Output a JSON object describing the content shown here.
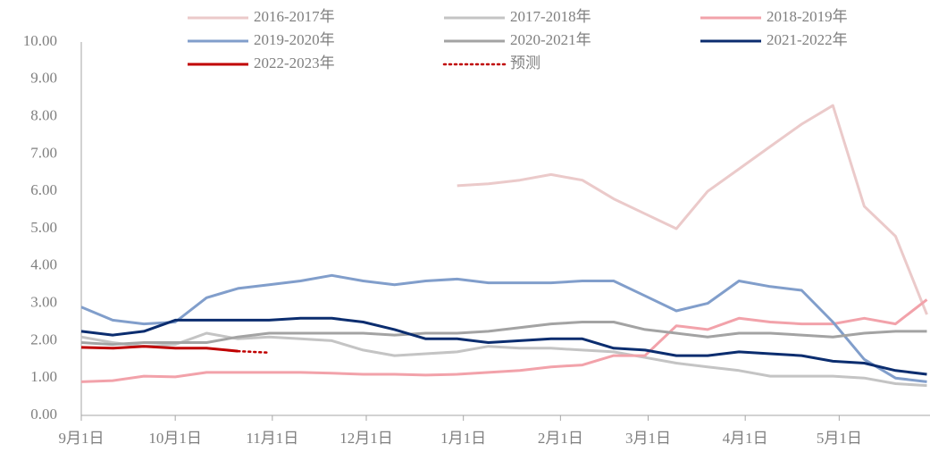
{
  "chart_data": {
    "type": "line",
    "x": [
      0,
      10,
      20,
      30,
      40,
      50,
      60,
      70,
      80,
      90,
      100,
      110,
      120,
      130,
      140,
      150,
      160,
      170,
      180,
      190,
      200,
      210,
      220,
      230,
      240,
      250,
      260,
      270
    ],
    "xlim": [
      0,
      271
    ],
    "xticks": [
      {
        "value": 0,
        "label": "9月1日"
      },
      {
        "value": 30,
        "label": "10月1日"
      },
      {
        "value": 61,
        "label": "11月1日"
      },
      {
        "value": 91,
        "label": "12月1日"
      },
      {
        "value": 122,
        "label": "1月1日"
      },
      {
        "value": 153,
        "label": "2月1日"
      },
      {
        "value": 181,
        "label": "3月1日"
      },
      {
        "value": 212,
        "label": "4月1日"
      },
      {
        "value": 242,
        "label": "5月1日"
      }
    ],
    "ylim": [
      0,
      10
    ],
    "yticks": [
      {
        "value": 0,
        "label": "0.00"
      },
      {
        "value": 1,
        "label": "1.00"
      },
      {
        "value": 2,
        "label": "2.00"
      },
      {
        "value": 3,
        "label": "3.00"
      },
      {
        "value": 4,
        "label": "4.00"
      },
      {
        "value": 5,
        "label": "5.00"
      },
      {
        "value": 6,
        "label": "6.00"
      },
      {
        "value": 7,
        "label": "7.00"
      },
      {
        "value": 8,
        "label": "8.00"
      },
      {
        "value": 9,
        "label": "9.00"
      },
      {
        "value": 10,
        "label": "10.00"
      }
    ],
    "grid": false,
    "legend": "top",
    "series": [
      {
        "name": "2016-2017年",
        "color": "#ebcaca",
        "style": "solid",
        "values": [
          null,
          null,
          null,
          null,
          null,
          null,
          null,
          null,
          null,
          null,
          null,
          null,
          6.15,
          6.2,
          6.3,
          6.45,
          6.3,
          5.8,
          5.4,
          5.0,
          6.0,
          6.6,
          7.2,
          7.8,
          8.3,
          5.6,
          4.8,
          2.7
        ]
      },
      {
        "name": "2017-2018年",
        "color": "#c4c4c4",
        "style": "solid",
        "values": [
          2.1,
          1.95,
          1.85,
          1.9,
          2.2,
          2.05,
          2.1,
          2.05,
          2.0,
          1.75,
          1.6,
          1.65,
          1.7,
          1.85,
          1.8,
          1.8,
          1.75,
          1.7,
          1.55,
          1.4,
          1.3,
          1.2,
          1.05,
          1.05,
          1.05,
          1.0,
          0.85,
          0.8
        ]
      },
      {
        "name": "2018-2019年",
        "color": "#f2a2aa",
        "style": "solid",
        "values": [
          0.9,
          0.93,
          1.05,
          1.03,
          1.15,
          1.15,
          1.15,
          1.15,
          1.13,
          1.1,
          1.1,
          1.08,
          1.1,
          1.15,
          1.2,
          1.3,
          1.35,
          1.6,
          1.6,
          2.4,
          2.3,
          2.6,
          2.5,
          2.45,
          2.45,
          2.6,
          2.45,
          3.1
        ]
      },
      {
        "name": "2019-2020年",
        "color": "#819ecb",
        "style": "solid",
        "values": [
          2.9,
          2.55,
          2.45,
          2.5,
          3.15,
          3.4,
          3.5,
          3.6,
          3.75,
          3.6,
          3.5,
          3.6,
          3.65,
          3.55,
          3.55,
          3.55,
          3.6,
          3.6,
          3.2,
          2.8,
          3.0,
          3.6,
          3.45,
          3.35,
          2.5,
          1.5,
          1.0,
          0.9
        ]
      },
      {
        "name": "2020-2021年",
        "color": "#a3a3a3",
        "style": "solid",
        "values": [
          1.95,
          1.9,
          1.95,
          1.95,
          1.95,
          2.1,
          2.2,
          2.2,
          2.2,
          2.2,
          2.15,
          2.2,
          2.2,
          2.25,
          2.35,
          2.45,
          2.5,
          2.5,
          2.3,
          2.2,
          2.1,
          2.2,
          2.2,
          2.15,
          2.1,
          2.2,
          2.25,
          2.25
        ]
      },
      {
        "name": "2021-2022年",
        "color": "#0b2d6f",
        "style": "solid",
        "values": [
          2.25,
          2.15,
          2.25,
          2.55,
          2.55,
          2.55,
          2.55,
          2.6,
          2.6,
          2.5,
          2.3,
          2.05,
          2.05,
          1.95,
          2.0,
          2.05,
          2.05,
          1.8,
          1.75,
          1.6,
          1.6,
          1.7,
          1.65,
          1.6,
          1.45,
          1.4,
          1.2,
          1.1
        ]
      },
      {
        "name": "2022-2023年",
        "color": "#c00000",
        "style": "solid",
        "values": [
          1.82,
          1.8,
          1.85,
          1.8,
          1.8,
          1.72,
          null,
          null,
          null,
          null,
          null,
          null,
          null,
          null,
          null,
          null,
          null,
          null,
          null,
          null,
          null,
          null,
          null,
          null,
          null,
          null,
          null,
          null
        ]
      },
      {
        "name": "预测",
        "color": "#c00000",
        "style": "dotted",
        "values": [
          null,
          null,
          null,
          null,
          null,
          1.72,
          1.68,
          null,
          null,
          null,
          null,
          null,
          null,
          null,
          null,
          null,
          null,
          null,
          null,
          null,
          null,
          null,
          null,
          null,
          null,
          null,
          null,
          null
        ]
      }
    ]
  }
}
